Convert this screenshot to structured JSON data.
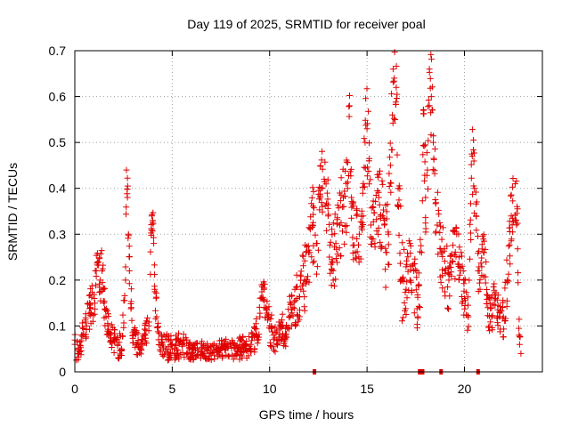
{
  "chart_data": {
    "type": "scatter",
    "title": "Day 119 of 2025, SRMTID for receiver poal",
    "xlabel": "GPS time / hours",
    "ylabel": "SRMTID / TECUs",
    "xlim": [
      0,
      24
    ],
    "ylim": [
      0,
      0.7
    ],
    "xticks": [
      0,
      5,
      10,
      15,
      20
    ],
    "xtick_labels": [
      "0",
      "5",
      "10",
      "15",
      "20"
    ],
    "yticks": [
      0,
      0.1,
      0.2,
      0.3,
      0.4,
      0.5,
      0.6,
      0.7
    ],
    "ytick_labels": [
      "0",
      "0.1",
      "0.2",
      "0.3",
      "0.4",
      "0.5",
      "0.6",
      "0.7"
    ],
    "grid": true,
    "marker": "+",
    "color": "#e00000",
    "series": [
      {
        "name": "SRMTID",
        "x": [
          0.0,
          0.2,
          0.4,
          0.6,
          0.8,
          1.0,
          1.1,
          1.2,
          1.3,
          1.4,
          1.5,
          1.6,
          1.7,
          1.8,
          2.0,
          2.2,
          2.4,
          2.6,
          2.65,
          2.7,
          2.75,
          2.8,
          2.9,
          3.0,
          3.2,
          3.4,
          3.6,
          3.8,
          3.95,
          4.0,
          4.05,
          4.1,
          4.2,
          4.3,
          4.5,
          5.0,
          5.5,
          6.0,
          6.5,
          7.0,
          7.5,
          8.0,
          8.5,
          9.0,
          9.3,
          9.5,
          9.6,
          9.7,
          9.8,
          9.9,
          10.0,
          10.2,
          10.4,
          10.6,
          10.8,
          11.0,
          11.2,
          11.4,
          11.6,
          11.8,
          12.0,
          12.2,
          12.4,
          12.6,
          12.8,
          13.0,
          13.2,
          13.4,
          13.6,
          13.8,
          14.0,
          14.1,
          14.2,
          14.4,
          14.6,
          14.8,
          14.9,
          15.0,
          15.1,
          15.2,
          15.4,
          15.6,
          15.8,
          16.0,
          16.1,
          16.2,
          16.3,
          16.4,
          16.5,
          16.6,
          16.8,
          17.0,
          17.2,
          17.4,
          17.6,
          17.8,
          17.9,
          18.0,
          18.1,
          18.2,
          18.3,
          18.4,
          18.6,
          18.8,
          19.0,
          19.2,
          19.4,
          19.6,
          19.8,
          20.0,
          20.2,
          20.4,
          20.6,
          20.7,
          20.8,
          21.0,
          21.2,
          21.4,
          21.6,
          21.8,
          22.0,
          22.2,
          22.4,
          22.6,
          22.7,
          22.8,
          22.9
        ],
        "y": [
          0.06,
          0.04,
          0.08,
          0.1,
          0.14,
          0.16,
          0.22,
          0.24,
          0.2,
          0.22,
          0.15,
          0.12,
          0.1,
          0.08,
          0.07,
          0.06,
          0.05,
          0.2,
          0.44,
          0.38,
          0.3,
          0.22,
          0.14,
          0.08,
          0.06,
          0.05,
          0.08,
          0.1,
          0.34,
          0.33,
          0.28,
          0.18,
          0.12,
          0.07,
          0.06,
          0.05,
          0.06,
          0.04,
          0.05,
          0.04,
          0.05,
          0.06,
          0.05,
          0.05,
          0.08,
          0.12,
          0.16,
          0.18,
          0.14,
          0.12,
          0.1,
          0.08,
          0.06,
          0.1,
          0.07,
          0.12,
          0.14,
          0.16,
          0.18,
          0.2,
          0.26,
          0.32,
          0.28,
          0.38,
          0.42,
          0.34,
          0.24,
          0.28,
          0.32,
          0.36,
          0.4,
          0.58,
          0.38,
          0.26,
          0.3,
          0.34,
          0.5,
          0.53,
          0.46,
          0.32,
          0.28,
          0.38,
          0.34,
          0.26,
          0.3,
          0.45,
          0.56,
          0.64,
          0.62,
          0.4,
          0.2,
          0.18,
          0.28,
          0.22,
          0.12,
          0.26,
          0.57,
          0.38,
          0.44,
          0.66,
          0.6,
          0.5,
          0.32,
          0.26,
          0.22,
          0.2,
          0.24,
          0.3,
          0.22,
          0.16,
          0.12,
          0.47,
          0.34,
          0.22,
          0.18,
          0.26,
          0.14,
          0.12,
          0.16,
          0.12,
          0.12,
          0.2,
          0.34,
          0.41,
          0.36,
          0.08,
          0.04
        ],
        "spread": [
          0.03,
          0.03,
          0.03,
          0.04,
          0.04,
          0.05,
          0.04,
          0.03,
          0.05,
          0.05,
          0.05,
          0.04,
          0.03,
          0.03,
          0.03,
          0.03,
          0.03,
          0.04,
          0.04,
          0.05,
          0.05,
          0.05,
          0.04,
          0.03,
          0.03,
          0.02,
          0.03,
          0.03,
          0.03,
          0.03,
          0.04,
          0.04,
          0.04,
          0.03,
          0.03,
          0.03,
          0.03,
          0.02,
          0.02,
          0.02,
          0.02,
          0.03,
          0.03,
          0.03,
          0.03,
          0.04,
          0.04,
          0.03,
          0.04,
          0.04,
          0.04,
          0.04,
          0.03,
          0.04,
          0.03,
          0.04,
          0.05,
          0.06,
          0.06,
          0.07,
          0.08,
          0.09,
          0.09,
          0.09,
          0.08,
          0.08,
          0.08,
          0.08,
          0.09,
          0.09,
          0.09,
          0.08,
          0.08,
          0.08,
          0.08,
          0.08,
          0.09,
          0.1,
          0.1,
          0.09,
          0.09,
          0.1,
          0.1,
          0.1,
          0.1,
          0.1,
          0.1,
          0.1,
          0.1,
          0.1,
          0.09,
          0.08,
          0.08,
          0.08,
          0.08,
          0.08,
          0.09,
          0.09,
          0.1,
          0.1,
          0.1,
          0.1,
          0.09,
          0.08,
          0.07,
          0.07,
          0.07,
          0.08,
          0.07,
          0.06,
          0.05,
          0.08,
          0.08,
          0.08,
          0.07,
          0.07,
          0.06,
          0.05,
          0.05,
          0.04,
          0.05,
          0.06,
          0.08,
          0.08,
          0.08,
          0.04,
          0.03
        ]
      }
    ],
    "baseline_markers": [
      12.3,
      17.7,
      17.85,
      18.8,
      20.7
    ]
  }
}
